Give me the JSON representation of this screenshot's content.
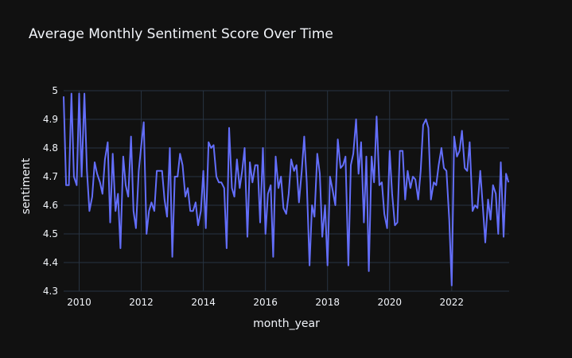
{
  "colors": {
    "background": "#111111",
    "grid": "#283442",
    "text": "#f2f5fa",
    "line": "#636efa"
  },
  "chart_data": {
    "type": "line",
    "title": "Average Monthly Sentiment Score Over Time",
    "xlabel": "month_year",
    "ylabel": "sentiment",
    "xlim": [
      2009.5,
      2023.85
    ],
    "ylim": [
      4.3,
      5.0
    ],
    "grid": true,
    "legend": "none",
    "x_ticks": [
      2010,
      2012,
      2014,
      2016,
      2018,
      2020,
      2022
    ],
    "y_ticks": [
      4.3,
      4.4,
      4.5,
      4.6,
      4.7,
      4.8,
      4.9,
      5
    ],
    "series": [
      {
        "values": [
          [
            2009.5,
            4.98
          ],
          [
            2009.58,
            4.67
          ],
          [
            2009.67,
            4.67
          ],
          [
            2009.75,
            4.99
          ],
          [
            2009.83,
            4.7
          ],
          [
            2009.92,
            4.67
          ],
          [
            2010.0,
            4.99
          ],
          [
            2010.08,
            4.7
          ],
          [
            2010.17,
            4.99
          ],
          [
            2010.25,
            4.72
          ],
          [
            2010.33,
            4.58
          ],
          [
            2010.42,
            4.63
          ],
          [
            2010.5,
            4.75
          ],
          [
            2010.58,
            4.71
          ],
          [
            2010.67,
            4.68
          ],
          [
            2010.75,
            4.64
          ],
          [
            2010.83,
            4.76
          ],
          [
            2010.92,
            4.82
          ],
          [
            2011.0,
            4.54
          ],
          [
            2011.08,
            4.78
          ],
          [
            2011.17,
            4.58
          ],
          [
            2011.25,
            4.64
          ],
          [
            2011.33,
            4.45
          ],
          [
            2011.42,
            4.77
          ],
          [
            2011.5,
            4.67
          ],
          [
            2011.58,
            4.63
          ],
          [
            2011.67,
            4.84
          ],
          [
            2011.75,
            4.58
          ],
          [
            2011.83,
            4.52
          ],
          [
            2011.92,
            4.72
          ],
          [
            2012.0,
            4.81
          ],
          [
            2012.08,
            4.89
          ],
          [
            2012.17,
            4.5
          ],
          [
            2012.25,
            4.58
          ],
          [
            2012.33,
            4.61
          ],
          [
            2012.42,
            4.58
          ],
          [
            2012.5,
            4.72
          ],
          [
            2012.58,
            4.72
          ],
          [
            2012.67,
            4.72
          ],
          [
            2012.75,
            4.62
          ],
          [
            2012.83,
            4.56
          ],
          [
            2012.92,
            4.8
          ],
          [
            2013.0,
            4.42
          ],
          [
            2013.08,
            4.7
          ],
          [
            2013.17,
            4.7
          ],
          [
            2013.25,
            4.78
          ],
          [
            2013.33,
            4.74
          ],
          [
            2013.42,
            4.63
          ],
          [
            2013.5,
            4.66
          ],
          [
            2013.58,
            4.58
          ],
          [
            2013.67,
            4.58
          ],
          [
            2013.75,
            4.61
          ],
          [
            2013.83,
            4.53
          ],
          [
            2013.92,
            4.58
          ],
          [
            2014.0,
            4.72
          ],
          [
            2014.08,
            4.52
          ],
          [
            2014.17,
            4.82
          ],
          [
            2014.25,
            4.8
          ],
          [
            2014.33,
            4.81
          ],
          [
            2014.42,
            4.7
          ],
          [
            2014.5,
            4.68
          ],
          [
            2014.58,
            4.68
          ],
          [
            2014.67,
            4.66
          ],
          [
            2014.75,
            4.45
          ],
          [
            2014.83,
            4.87
          ],
          [
            2014.92,
            4.66
          ],
          [
            2015.0,
            4.63
          ],
          [
            2015.08,
            4.76
          ],
          [
            2015.17,
            4.66
          ],
          [
            2015.25,
            4.72
          ],
          [
            2015.33,
            4.8
          ],
          [
            2015.42,
            4.49
          ],
          [
            2015.5,
            4.75
          ],
          [
            2015.58,
            4.68
          ],
          [
            2015.67,
            4.74
          ],
          [
            2015.75,
            4.74
          ],
          [
            2015.83,
            4.54
          ],
          [
            2015.92,
            4.8
          ],
          [
            2016.0,
            4.5
          ],
          [
            2016.08,
            4.64
          ],
          [
            2016.17,
            4.67
          ],
          [
            2016.25,
            4.42
          ],
          [
            2016.33,
            4.77
          ],
          [
            2016.42,
            4.66
          ],
          [
            2016.5,
            4.7
          ],
          [
            2016.58,
            4.59
          ],
          [
            2016.67,
            4.57
          ],
          [
            2016.75,
            4.64
          ],
          [
            2016.83,
            4.76
          ],
          [
            2016.92,
            4.72
          ],
          [
            2017.0,
            4.74
          ],
          [
            2017.08,
            4.61
          ],
          [
            2017.17,
            4.72
          ],
          [
            2017.25,
            4.84
          ],
          [
            2017.33,
            4.68
          ],
          [
            2017.42,
            4.39
          ],
          [
            2017.5,
            4.6
          ],
          [
            2017.58,
            4.56
          ],
          [
            2017.67,
            4.78
          ],
          [
            2017.75,
            4.71
          ],
          [
            2017.83,
            4.49
          ],
          [
            2017.92,
            4.6
          ],
          [
            2018.0,
            4.39
          ],
          [
            2018.08,
            4.7
          ],
          [
            2018.17,
            4.65
          ],
          [
            2018.25,
            4.6
          ],
          [
            2018.33,
            4.83
          ],
          [
            2018.42,
            4.73
          ],
          [
            2018.5,
            4.74
          ],
          [
            2018.58,
            4.77
          ],
          [
            2018.67,
            4.39
          ],
          [
            2018.75,
            4.74
          ],
          [
            2018.83,
            4.78
          ],
          [
            2018.92,
            4.9
          ],
          [
            2019.0,
            4.71
          ],
          [
            2019.08,
            4.82
          ],
          [
            2019.17,
            4.54
          ],
          [
            2019.25,
            4.77
          ],
          [
            2019.33,
            4.37
          ],
          [
            2019.42,
            4.77
          ],
          [
            2019.5,
            4.68
          ],
          [
            2019.58,
            4.91
          ],
          [
            2019.67,
            4.67
          ],
          [
            2019.75,
            4.68
          ],
          [
            2019.83,
            4.57
          ],
          [
            2019.92,
            4.52
          ],
          [
            2020.0,
            4.79
          ],
          [
            2020.08,
            4.64
          ],
          [
            2020.17,
            4.53
          ],
          [
            2020.25,
            4.54
          ],
          [
            2020.33,
            4.79
          ],
          [
            2020.42,
            4.79
          ],
          [
            2020.5,
            4.62
          ],
          [
            2020.58,
            4.72
          ],
          [
            2020.67,
            4.66
          ],
          [
            2020.75,
            4.7
          ],
          [
            2020.83,
            4.69
          ],
          [
            2020.92,
            4.62
          ],
          [
            2021.0,
            4.72
          ],
          [
            2021.08,
            4.88
          ],
          [
            2021.17,
            4.9
          ],
          [
            2021.25,
            4.87
          ],
          [
            2021.33,
            4.62
          ],
          [
            2021.42,
            4.68
          ],
          [
            2021.5,
            4.67
          ],
          [
            2021.58,
            4.74
          ],
          [
            2021.67,
            4.8
          ],
          [
            2021.75,
            4.73
          ],
          [
            2021.83,
            4.72
          ],
          [
            2021.92,
            4.55
          ],
          [
            2022.0,
            4.32
          ],
          [
            2022.08,
            4.84
          ],
          [
            2022.17,
            4.77
          ],
          [
            2022.25,
            4.79
          ],
          [
            2022.33,
            4.86
          ],
          [
            2022.42,
            4.73
          ],
          [
            2022.5,
            4.72
          ],
          [
            2022.58,
            4.82
          ],
          [
            2022.67,
            4.58
          ],
          [
            2022.75,
            4.6
          ],
          [
            2022.83,
            4.59
          ],
          [
            2022.92,
            4.72
          ],
          [
            2023.0,
            4.6
          ],
          [
            2023.08,
            4.47
          ],
          [
            2023.17,
            4.62
          ],
          [
            2023.25,
            4.55
          ],
          [
            2023.33,
            4.67
          ],
          [
            2023.42,
            4.64
          ],
          [
            2023.5,
            4.5
          ],
          [
            2023.58,
            4.75
          ],
          [
            2023.67,
            4.49
          ],
          [
            2023.75,
            4.71
          ],
          [
            2023.83,
            4.68
          ]
        ]
      }
    ]
  }
}
